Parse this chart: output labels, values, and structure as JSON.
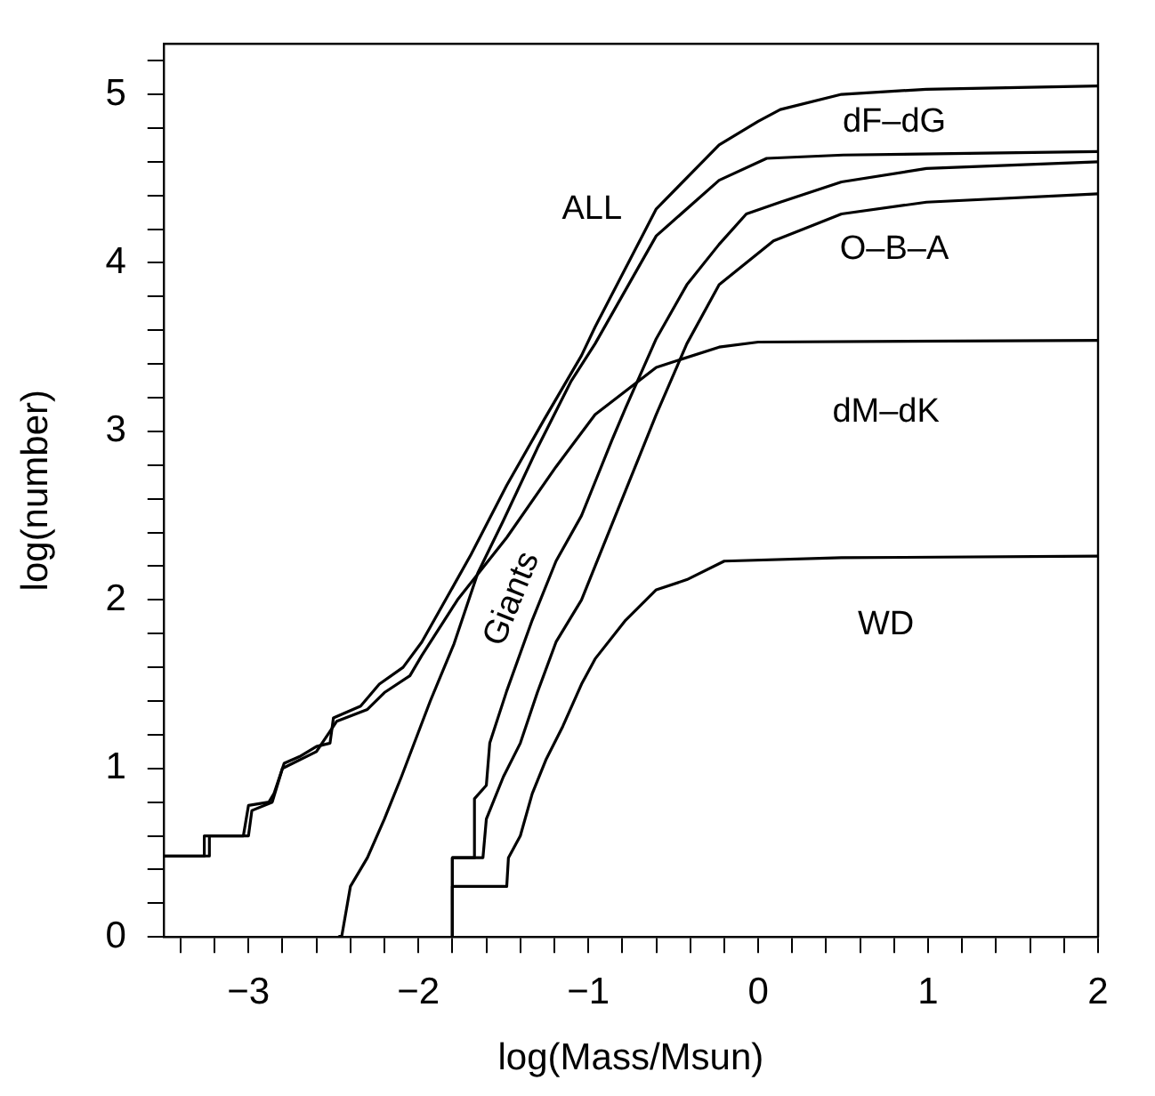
{
  "chart_data": {
    "type": "line",
    "xlabel": "log(Mass/Msun)",
    "ylabel": "log(number)",
    "xlim": [
      -3.5,
      2
    ],
    "ylim": [
      0,
      5.3
    ],
    "xticks": [
      {
        "value": -3.4,
        "label": null
      },
      {
        "value": -3.2,
        "label": null
      },
      {
        "value": -3,
        "label": "−3"
      },
      {
        "value": -2.8,
        "label": null
      },
      {
        "value": -2.6,
        "label": null
      },
      {
        "value": -2.4,
        "label": null
      },
      {
        "value": -2.2,
        "label": null
      },
      {
        "value": -2,
        "label": "−2"
      },
      {
        "value": -1.8,
        "label": null
      },
      {
        "value": -1.6,
        "label": null
      },
      {
        "value": -1.4,
        "label": null
      },
      {
        "value": -1.2,
        "label": null
      },
      {
        "value": -1,
        "label": "−1"
      },
      {
        "value": -0.8,
        "label": null
      },
      {
        "value": -0.6,
        "label": null
      },
      {
        "value": -0.4,
        "label": null
      },
      {
        "value": -0.2,
        "label": null
      },
      0,
      {
        "value": 0.2,
        "label": null
      },
      {
        "value": 0.4,
        "label": null
      },
      {
        "value": 0.6,
        "label": null
      },
      {
        "value": 0.8,
        "label": null
      },
      1,
      {
        "value": 1.2,
        "label": null
      },
      {
        "value": 1.4,
        "label": null
      },
      {
        "value": 1.6,
        "label": null
      },
      {
        "value": 1.8,
        "label": null
      },
      2
    ],
    "yticks": [
      0,
      {
        "value": 0.2,
        "label": null
      },
      {
        "value": 0.4,
        "label": null
      },
      {
        "value": 0.6,
        "label": null
      },
      {
        "value": 0.8,
        "label": null
      },
      1,
      {
        "value": 1.2,
        "label": null
      },
      {
        "value": 1.4,
        "label": null
      },
      {
        "value": 1.6,
        "label": null
      },
      {
        "value": 1.8,
        "label": null
      },
      2,
      {
        "value": 2.2,
        "label": null
      },
      {
        "value": 2.4,
        "label": null
      },
      {
        "value": 2.6,
        "label": null
      },
      {
        "value": 2.8,
        "label": null
      },
      3,
      {
        "value": 3.2,
        "label": null
      },
      {
        "value": 3.4,
        "label": null
      },
      {
        "value": 3.6,
        "label": null
      },
      {
        "value": 3.8,
        "label": null
      },
      4,
      {
        "value": 4.2,
        "label": null
      },
      {
        "value": 4.4,
        "label": null
      },
      {
        "value": 4.6,
        "label": null
      },
      {
        "value": 4.8,
        "label": null
      },
      5,
      {
        "value": 5.2,
        "label": null
      }
    ],
    "grid": false,
    "legend": false,
    "marker": "none",
    "line_style": "solid",
    "series": [
      {
        "name": "ALL",
        "color": "#000000",
        "x": [
          -3.5,
          -3.26,
          -3.26,
          -3.03,
          -3.0,
          -2.88,
          -2.85,
          -2.79,
          -2.7,
          -2.6,
          -2.52,
          -2.5,
          -2.34,
          -2.23,
          -2.09,
          -1.98,
          -1.84,
          -1.69,
          -1.48,
          -1.26,
          -1.04,
          -0.96,
          -0.6,
          -0.23,
          0,
          0.13,
          0.49,
          0.99,
          2
        ],
        "values": [
          0.48,
          0.48,
          0.6,
          0.6,
          0.78,
          0.8,
          0.85,
          1.03,
          1.07,
          1.13,
          1.15,
          1.3,
          1.37,
          1.5,
          1.6,
          1.75,
          2.0,
          2.27,
          2.68,
          3.07,
          3.45,
          3.62,
          4.32,
          4.7,
          4.84,
          4.91,
          5.0,
          5.03,
          5.05
        ]
      },
      {
        "name": "dF–dG",
        "color": "#000000",
        "x": [
          -2.47,
          -2.45,
          -2.4,
          -2.3,
          -2.2,
          -2.1,
          -1.93,
          -1.79,
          -1.65,
          -1.5,
          -1.3,
          -1.1,
          -0.96,
          -0.6,
          -0.23,
          0.05,
          0.5,
          2
        ],
        "values": [
          0,
          0.01,
          0.3,
          0.47,
          0.7,
          0.95,
          1.4,
          1.74,
          2.16,
          2.47,
          2.9,
          3.3,
          3.52,
          4.16,
          4.49,
          4.62,
          4.64,
          4.66
        ]
      },
      {
        "name": "Giants",
        "color": "#000000",
        "x": [
          -1.8,
          -1.8,
          -1.67,
          -1.67,
          -1.6,
          -1.58,
          -1.48,
          -1.33,
          -1.19,
          -1.04,
          -0.96,
          -0.86,
          -0.78,
          -0.6,
          -0.42,
          -0.23,
          -0.07,
          0.13,
          0.49,
          0.99,
          2
        ],
        "values": [
          0,
          0.47,
          0.47,
          0.82,
          0.9,
          1.15,
          1.46,
          1.88,
          2.23,
          2.5,
          2.7,
          2.95,
          3.14,
          3.55,
          3.87,
          4.11,
          4.29,
          4.36,
          4.48,
          4.56,
          4.6
        ]
      },
      {
        "name": "O–B–A",
        "color": "#000000",
        "x": [
          -1.8,
          -1.8,
          -1.62,
          -1.6,
          -1.5,
          -1.4,
          -1.3,
          -1.19,
          -1.04,
          -0.96,
          -0.78,
          -0.6,
          -0.42,
          -0.23,
          0.09,
          0.49,
          0.99,
          2
        ],
        "values": [
          0,
          0.47,
          0.47,
          0.7,
          0.95,
          1.15,
          1.45,
          1.75,
          2.0,
          2.2,
          2.65,
          3.1,
          3.52,
          3.87,
          4.13,
          4.29,
          4.36,
          4.41
        ]
      },
      {
        "name": "dM–dK",
        "color": "#000000",
        "x": [
          -3.5,
          -3.23,
          -3.23,
          -3.0,
          -2.98,
          -2.86,
          -2.8,
          -2.6,
          -2.48,
          -2.3,
          -2.2,
          -2.05,
          -1.98,
          -1.77,
          -1.48,
          -1.19,
          -0.96,
          -0.6,
          -0.23,
          0,
          2
        ],
        "values": [
          0.48,
          0.48,
          0.6,
          0.6,
          0.75,
          0.8,
          1.0,
          1.1,
          1.28,
          1.35,
          1.45,
          1.55,
          1.67,
          2.0,
          2.37,
          2.79,
          3.1,
          3.38,
          3.5,
          3.53,
          3.54
        ]
      },
      {
        "name": "WD",
        "color": "#000000",
        "x": [
          -1.8,
          -1.8,
          -1.48,
          -1.47,
          -1.4,
          -1.33,
          -1.25,
          -1.15,
          -1.04,
          -0.96,
          -0.78,
          -0.6,
          -0.42,
          -0.2,
          0.49,
          2
        ],
        "values": [
          0,
          0.3,
          0.3,
          0.47,
          0.6,
          0.85,
          1.05,
          1.25,
          1.5,
          1.65,
          1.88,
          2.06,
          2.12,
          2.23,
          2.25,
          2.26
        ]
      }
    ]
  }
}
